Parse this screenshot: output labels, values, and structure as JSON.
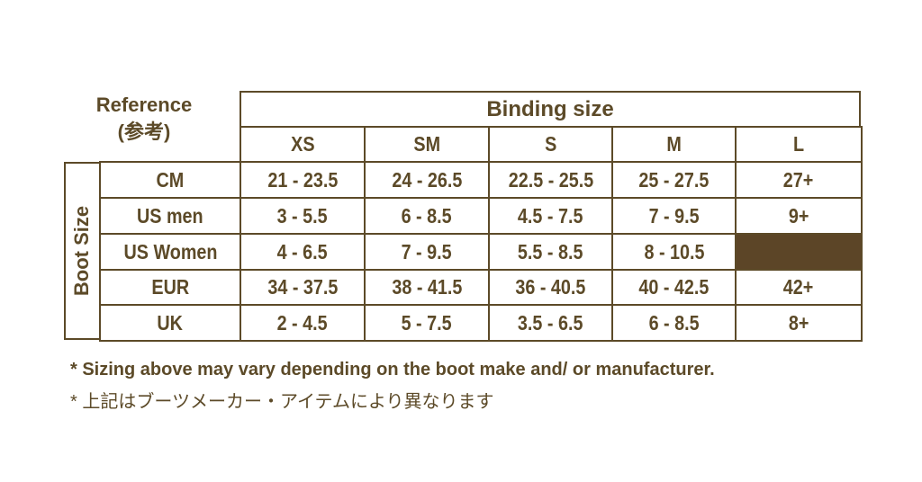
{
  "reference_label": "Reference",
  "reference_label_jp": "(参考)",
  "binding_size_header": "Binding size",
  "boot_size_label": "Boot Size",
  "columns": [
    "XS",
    "SM",
    "S",
    "M",
    "L"
  ],
  "rows": [
    {
      "label": "CM",
      "values": [
        "21 - 23.5",
        "24 - 26.5",
        "22.5 - 25.5",
        "25 - 27.5",
        "27+"
      ]
    },
    {
      "label": "US men",
      "values": [
        "3 - 5.5",
        "6 - 8.5",
        "4.5 - 7.5",
        "7 - 9.5",
        "9+"
      ]
    },
    {
      "label": "US Women",
      "values": [
        "4 - 6.5",
        "7 - 9.5",
        "5.5 - 8.5",
        "8 - 10.5",
        ""
      ]
    },
    {
      "label": "EUR",
      "values": [
        "34 - 37.5",
        "38 - 41.5",
        "36 - 40.5",
        "40 - 42.5",
        "42+"
      ]
    },
    {
      "label": "UK",
      "values": [
        "2 - 4.5",
        "5 - 7.5",
        "3.5 - 6.5",
        "6 - 8.5",
        "8+"
      ]
    }
  ],
  "notes": [
    "* Sizing above may vary depending on the boot make and/ or manufacturer.",
    "* 上記はブーツメーカー・アイテムにより異なります"
  ],
  "colors": {
    "primary": "#5c4a28",
    "filled_cell": "#5c4527"
  }
}
